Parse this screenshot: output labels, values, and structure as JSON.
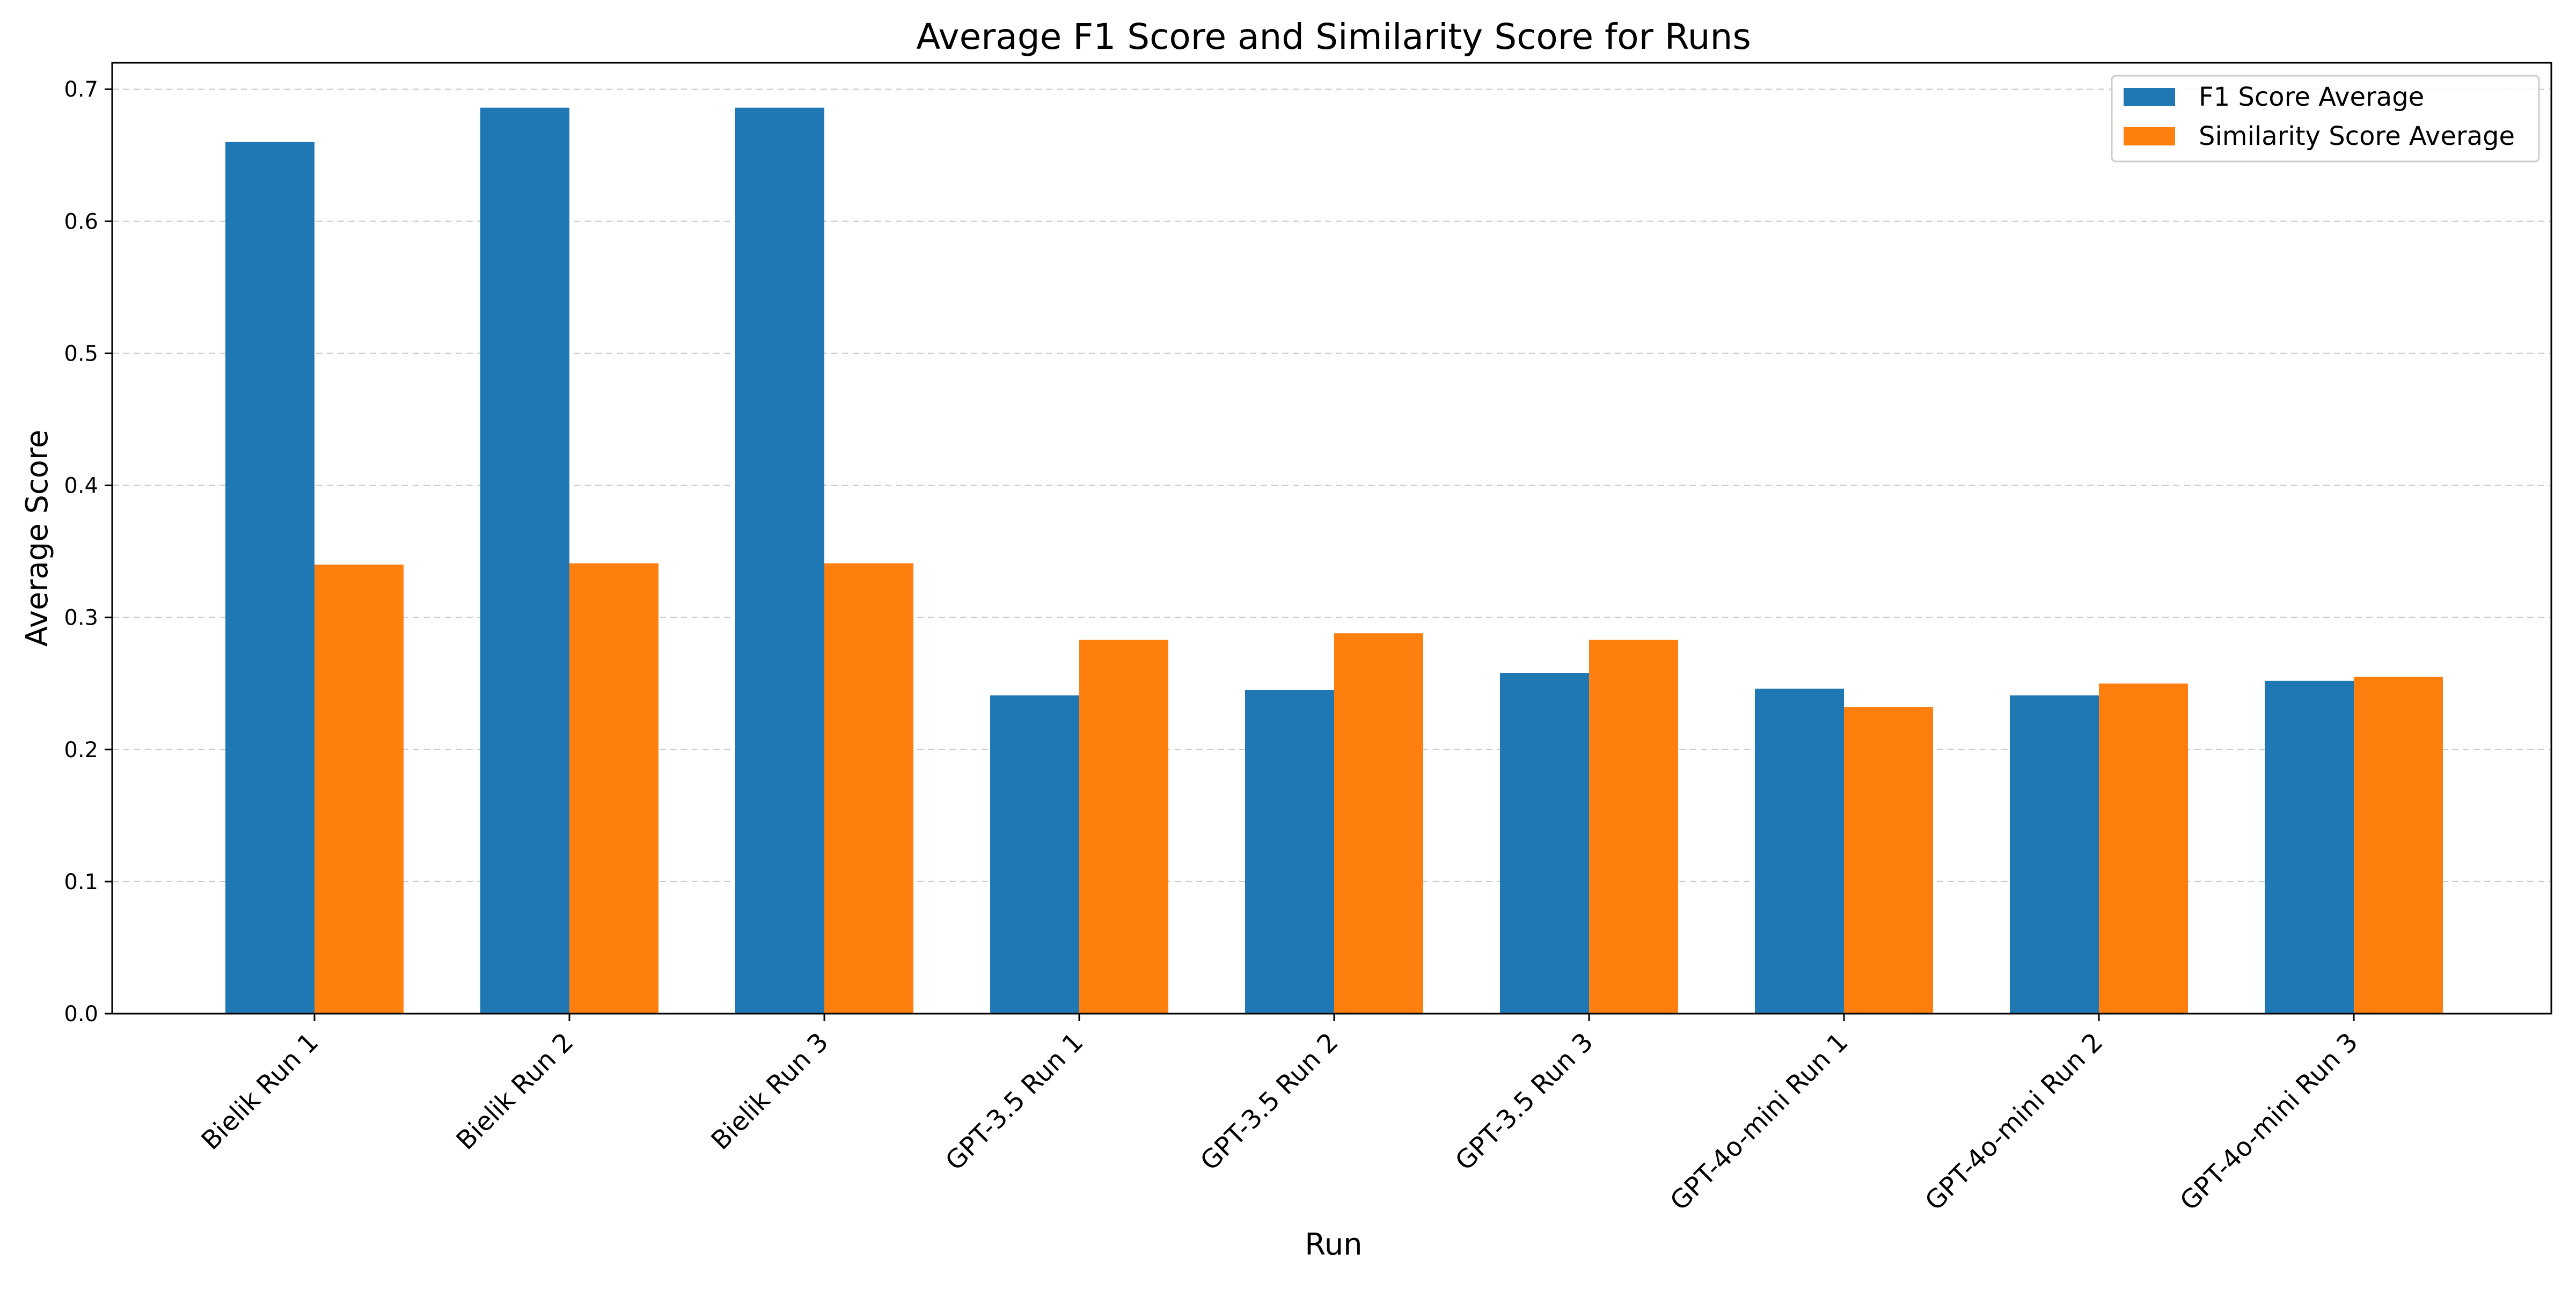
{
  "chart_data": {
    "type": "bar",
    "title": "Average F1 Score and Similarity Score for Runs",
    "xlabel": "Run",
    "ylabel": "Average Score",
    "ylim": [
      0,
      0.72
    ],
    "yticks": [
      0.0,
      0.1,
      0.2,
      0.3,
      0.4,
      0.5,
      0.6,
      0.7
    ],
    "grid": "y-dashed",
    "legend_position": "top-right",
    "categories": [
      "Bielik Run 1",
      "Bielik Run 2",
      "Bielik Run 3",
      "GPT-3.5 Run 1",
      "GPT-3.5 Run 2",
      "GPT-3.5 Run 3",
      "GPT-4o-mini Run 1",
      "GPT-4o-mini Run 2",
      "GPT-4o-mini Run 3"
    ],
    "series": [
      {
        "name": "F1 Score Average",
        "color": "#1f77b4",
        "values": [
          0.66,
          0.686,
          0.686,
          0.241,
          0.245,
          0.258,
          0.246,
          0.241,
          0.252
        ]
      },
      {
        "name": "Similarity Score Average",
        "color": "#ff7f0e",
        "values": [
          0.34,
          0.341,
          0.341,
          0.283,
          0.288,
          0.283,
          0.232,
          0.25,
          0.255
        ]
      }
    ]
  }
}
